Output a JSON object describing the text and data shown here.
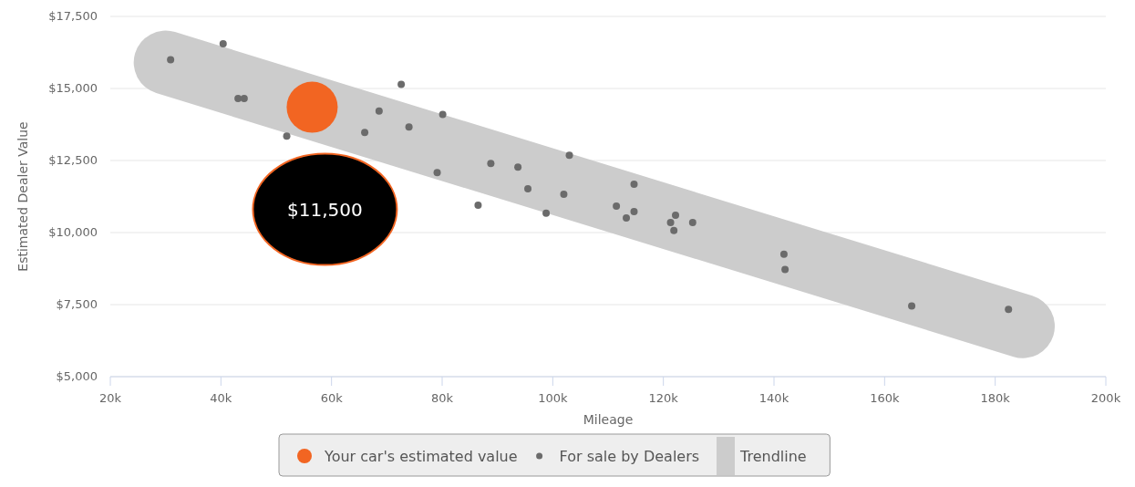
{
  "chart_data": {
    "type": "scatter",
    "xlabel": "Mileage",
    "ylabel": "Estimated Dealer Value",
    "xlim": [
      20000,
      200000
    ],
    "ylim": [
      5000,
      17500
    ],
    "xticks": [
      {
        "value": 20000,
        "label": "20k"
      },
      {
        "value": 40000,
        "label": "40k"
      },
      {
        "value": 60000,
        "label": "60k"
      },
      {
        "value": 80000,
        "label": "80k"
      },
      {
        "value": 100000,
        "label": "100k"
      },
      {
        "value": 120000,
        "label": "120k"
      },
      {
        "value": 140000,
        "label": "140k"
      },
      {
        "value": 160000,
        "label": "160k"
      },
      {
        "value": 180000,
        "label": "180k"
      },
      {
        "value": 200000,
        "label": "200k"
      }
    ],
    "yticks": [
      {
        "value": 5000,
        "label": "$5,000"
      },
      {
        "value": 7500,
        "label": "$7,500"
      },
      {
        "value": 10000,
        "label": "$10,000"
      },
      {
        "value": 12500,
        "label": "$12,500"
      },
      {
        "value": 15000,
        "label": "$15,000"
      },
      {
        "value": 17500,
        "label": "$17,500"
      }
    ],
    "grid": "y",
    "legend": "bottom",
    "annotations": [
      "$11,500"
    ],
    "series": [
      {
        "name": "Your car's estimated value",
        "color": "#f26522",
        "marker": "circle",
        "x": [
          56500
        ],
        "values": [
          14350
        ]
      },
      {
        "name": "For sale by Dealers",
        "color": "#6b6b6b",
        "marker": "circle",
        "x": [
          30900,
          40400,
          43100,
          44200,
          51900,
          66000,
          68600,
          72600,
          74000,
          79100,
          80100,
          86500,
          88800,
          93700,
          95500,
          98800,
          102000,
          103000,
          111500,
          113300,
          114700,
          114700,
          121300,
          121900,
          122200,
          125300,
          141800,
          142000,
          164900,
          182400
        ],
        "values": [
          16000,
          16550,
          14650,
          14650,
          13350,
          13470,
          14220,
          15140,
          13660,
          12080,
          14100,
          10950,
          12400,
          12270,
          11520,
          10670,
          11330,
          12680,
          10920,
          10510,
          11680,
          10730,
          10350,
          10070,
          10600,
          10350,
          9250,
          8720,
          7450,
          7330
        ]
      },
      {
        "name": "Trendline",
        "type": "line",
        "color": "#cccccc",
        "x": [
          30000,
          185000
        ],
        "values": [
          15900,
          6750
        ]
      }
    ]
  }
}
